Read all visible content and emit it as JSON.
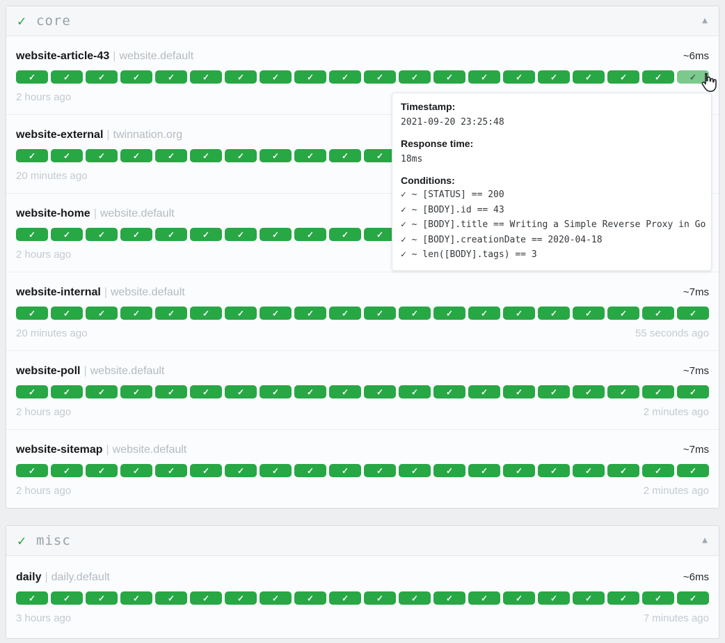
{
  "colors": {
    "success": "#28a745",
    "success_hover": "#7cc98d",
    "page_background": "#edeff1"
  },
  "labels": {
    "separator": "|"
  },
  "history": {
    "badges_per_row": 20,
    "badge_icon": "✓"
  },
  "groups": [
    {
      "status_icon": "✓",
      "name": "core",
      "collapse_icon": "▲",
      "services": [
        {
          "name": "website-article-43",
          "subtitle": "website.default",
          "response_time": "~6ms",
          "oldest": "2 hours ago",
          "hovered_last": true
        },
        {
          "name": "website-external",
          "subtitle": "twinnation.org",
          "oldest": "20 minutes ago"
        },
        {
          "name": "website-home",
          "subtitle": "website.default",
          "oldest": "2 hours ago"
        },
        {
          "name": "website-internal",
          "subtitle": "website.default",
          "response_time": "~7ms",
          "oldest": "20 minutes ago",
          "newest": "55 seconds ago"
        },
        {
          "name": "website-poll",
          "subtitle": "website.default",
          "response_time": "~7ms",
          "oldest": "2 hours ago",
          "newest": "2 minutes ago"
        },
        {
          "name": "website-sitemap",
          "subtitle": "website.default",
          "response_time": "~7ms",
          "oldest": "2 hours ago",
          "newest": "2 minutes ago"
        }
      ]
    },
    {
      "status_icon": "✓",
      "name": "misc",
      "collapse_icon": "▲",
      "services": [
        {
          "name": "daily",
          "subtitle": "daily.default",
          "response_time": "~6ms",
          "oldest": "3 hours ago",
          "newest": "7 minutes ago"
        }
      ]
    }
  ],
  "tooltip": {
    "timestamp_label": "Timestamp:",
    "timestamp_value": "2021-09-20 23:25:48",
    "response_time_label": "Response time:",
    "response_time_value": "18ms",
    "conditions_label": "Conditions:",
    "conditions": [
      "✓ ~ [STATUS] == 200",
      "✓ ~ [BODY].id == 43",
      "✓ ~ [BODY].title == Writing a Simple Reverse Proxy in Go",
      "✓ ~ [BODY].creationDate == 2020-04-18",
      "✓ ~ len([BODY].tags) == 3"
    ]
  }
}
